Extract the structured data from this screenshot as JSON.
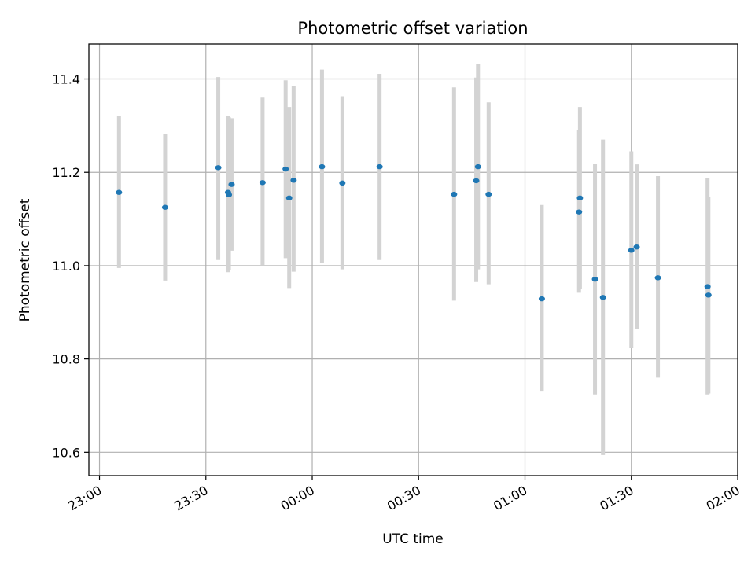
{
  "chart_data": {
    "type": "scatter",
    "title": "Photometric offset variation",
    "xlabel": "UTC time",
    "ylabel": "Photometric offset",
    "grid": true,
    "xlim": [
      "22:57",
      "02:00"
    ],
    "ylim": [
      10.55,
      11.475
    ],
    "xticks": [
      "23:00",
      "23:30",
      "00:00",
      "00:30",
      "01:00",
      "01:30",
      "02:00"
    ],
    "yticks": [
      10.6,
      10.8,
      11.0,
      11.2,
      11.4
    ],
    "colors": {
      "points": "#1f77b4",
      "errorbars": "#d3d3d3",
      "grid": "#b0b0b0"
    },
    "points": [
      {
        "x": "23:05:30",
        "y": 11.157,
        "ylow": 10.995,
        "yhigh": 11.32
      },
      {
        "x": "23:18:30",
        "y": 11.125,
        "ylow": 10.968,
        "yhigh": 11.282
      },
      {
        "x": "23:33:30",
        "y": 11.21,
        "ylow": 11.012,
        "yhigh": 11.404
      },
      {
        "x": "23:36:15",
        "y": 11.157,
        "ylow": 10.986,
        "yhigh": 11.32
      },
      {
        "x": "23:36:30",
        "y": 11.152,
        "ylow": 10.99,
        "yhigh": 11.318
      },
      {
        "x": "23:37:15",
        "y": 11.174,
        "ylow": 11.032,
        "yhigh": 11.316
      },
      {
        "x": "23:46:00",
        "y": 11.178,
        "ylow": 11.0,
        "yhigh": 11.36
      },
      {
        "x": "23:52:30",
        "y": 11.207,
        "ylow": 11.016,
        "yhigh": 11.397
      },
      {
        "x": "23:53:30",
        "y": 11.145,
        "ylow": 10.952,
        "yhigh": 11.34
      },
      {
        "x": "23:54:45",
        "y": 11.183,
        "ylow": 10.987,
        "yhigh": 11.384
      },
      {
        "x": "00:02:45",
        "y": 11.212,
        "ylow": 11.006,
        "yhigh": 11.42
      },
      {
        "x": "00:08:30",
        "y": 11.177,
        "ylow": 10.992,
        "yhigh": 11.363
      },
      {
        "x": "00:19:00",
        "y": 11.212,
        "ylow": 11.012,
        "yhigh": 11.411
      },
      {
        "x": "00:40:00",
        "y": 11.153,
        "ylow": 10.925,
        "yhigh": 11.382
      },
      {
        "x": "00:46:15",
        "y": 11.182,
        "ylow": 10.965,
        "yhigh": 11.403
      },
      {
        "x": "00:46:45",
        "y": 11.212,
        "ylow": 10.992,
        "yhigh": 11.432
      },
      {
        "x": "00:49:45",
        "y": 11.153,
        "ylow": 10.96,
        "yhigh": 11.35
      },
      {
        "x": "01:04:45",
        "y": 10.929,
        "ylow": 10.73,
        "yhigh": 11.13
      },
      {
        "x": "01:15:15",
        "y": 11.115,
        "ylow": 10.942,
        "yhigh": 11.29
      },
      {
        "x": "01:15:30",
        "y": 11.145,
        "ylow": 10.95,
        "yhigh": 11.34
      },
      {
        "x": "01:19:45",
        "y": 10.971,
        "ylow": 10.724,
        "yhigh": 11.218
      },
      {
        "x": "01:22:00",
        "y": 10.932,
        "ylow": 10.594,
        "yhigh": 11.27
      },
      {
        "x": "01:30:00",
        "y": 11.033,
        "ylow": 10.823,
        "yhigh": 11.245
      },
      {
        "x": "01:31:30",
        "y": 11.04,
        "ylow": 10.864,
        "yhigh": 11.217
      },
      {
        "x": "01:37:30",
        "y": 10.974,
        "ylow": 10.76,
        "yhigh": 11.192
      },
      {
        "x": "01:51:30",
        "y": 10.955,
        "ylow": 10.724,
        "yhigh": 11.188
      },
      {
        "x": "01:51:45",
        "y": 10.937,
        "ylow": 10.726,
        "yhigh": 11.148
      }
    ]
  }
}
